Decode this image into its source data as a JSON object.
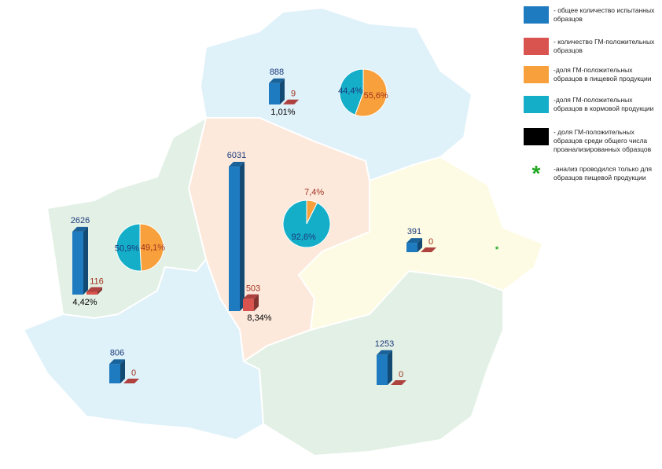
{
  "legend": [
    {
      "text": "- общее количество испытанных образцов",
      "color": "#1f7bc0"
    },
    {
      "text": "- количество ГМ-положительных образцов",
      "color": "#d9534f"
    },
    {
      "text": "-доля ГМ-положительных образцов в пищевой продукции",
      "color": "#f7a03c"
    },
    {
      "text": "-доля ГМ-положительных образцов в кормовой продукции",
      "color": "#15aec8"
    },
    {
      "text": "- доля ГМ-положительных образцов среди общего числа проанализированных образцов",
      "color": "#000000"
    },
    {
      "symbol": "*",
      "text": "-анализ проводился только для образцов пищевой продукции",
      "color": "#22a822"
    }
  ],
  "regions": [
    {
      "total": 888,
      "positive": 9,
      "share": {
        "value": 1.01,
        "label": "1,01%"
      },
      "pie": [
        {
          "value": 55.6,
          "label": "55,6%"
        },
        {
          "value": 44.4,
          "label": "44,4%"
        }
      ]
    },
    {
      "total": 6031,
      "positive": 503,
      "share": {
        "value": 8.34,
        "label": "8,34%"
      },
      "pie": [
        {
          "value": 7.4,
          "label": "7,4%"
        },
        {
          "value": 92.6,
          "label": "92,6%"
        }
      ]
    },
    {
      "total": 2626,
      "positive": 116,
      "share": {
        "value": 4.42,
        "label": "4,42%"
      },
      "pie": [
        {
          "value": 49.1,
          "label": "49,1%"
        },
        {
          "value": 50.9,
          "label": "50,9%"
        }
      ]
    },
    {
      "total": 391,
      "positive": 0,
      "note": "*"
    },
    {
      "total": 806,
      "positive": 0
    },
    {
      "total": 1253,
      "positive": 0
    }
  ]
}
